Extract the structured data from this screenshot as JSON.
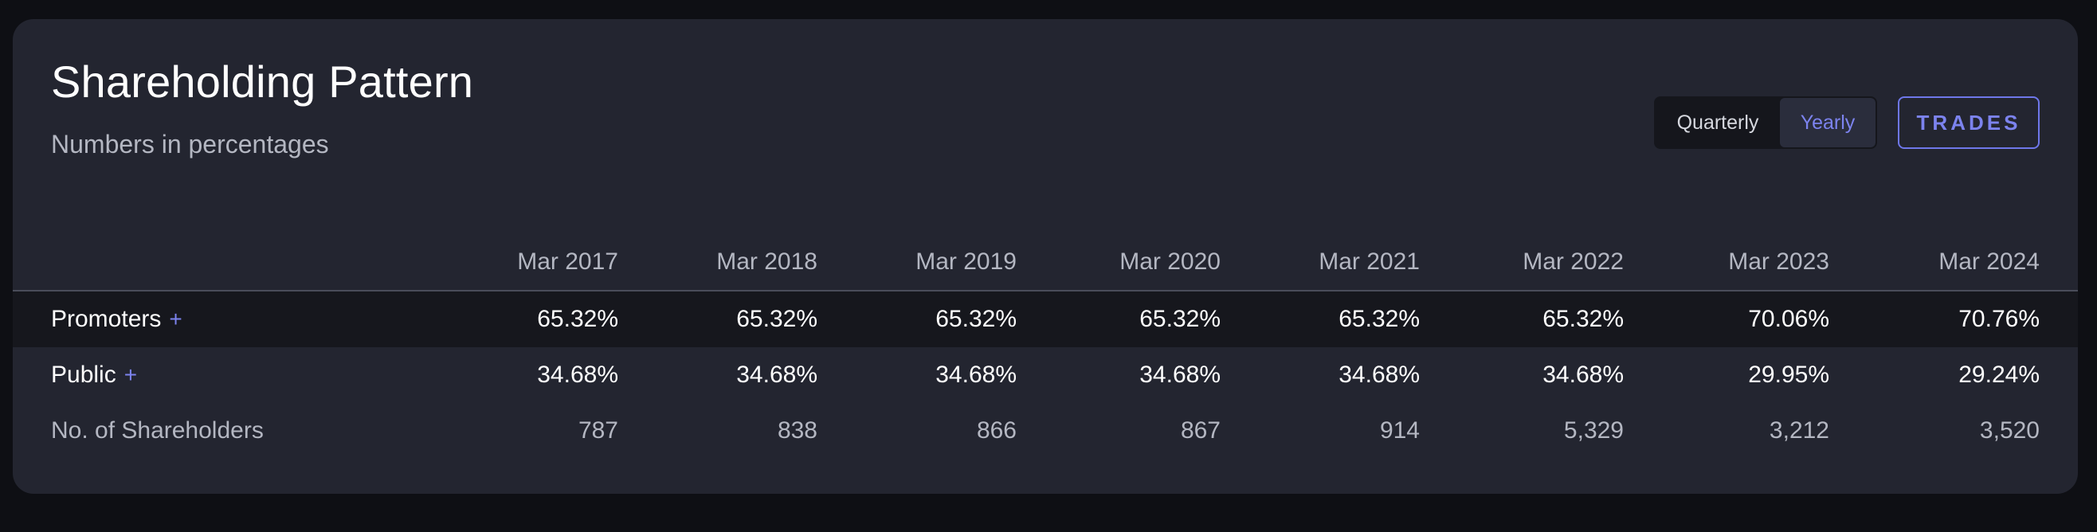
{
  "header": {
    "title": "Shareholding Pattern",
    "subtitle": "Numbers in percentages"
  },
  "controls": {
    "toggle": {
      "options": [
        "Quarterly",
        "Yearly"
      ],
      "selected": "Yearly"
    },
    "trades_label": "TRADES"
  },
  "colors": {
    "accent": "#7c83ee",
    "card_bg": "#232530",
    "page_bg": "#0e0f14",
    "row_highlight": "#16171d"
  },
  "table": {
    "columns": [
      "Mar 2017",
      "Mar 2018",
      "Mar 2019",
      "Mar 2020",
      "Mar 2021",
      "Mar 2022",
      "Mar 2023",
      "Mar 2024"
    ],
    "rows": [
      {
        "label": "Promoters",
        "expandable_symbol": "+",
        "values": [
          "65.32%",
          "65.32%",
          "65.32%",
          "65.32%",
          "65.32%",
          "65.32%",
          "70.06%",
          "70.76%"
        ]
      },
      {
        "label": "Public",
        "expandable_symbol": "+",
        "values": [
          "34.68%",
          "34.68%",
          "34.68%",
          "34.68%",
          "34.68%",
          "34.68%",
          "29.95%",
          "29.24%"
        ]
      },
      {
        "label": "No. of Shareholders",
        "values": [
          "787",
          "838",
          "866",
          "867",
          "914",
          "5,329",
          "3,212",
          "3,520"
        ]
      }
    ]
  }
}
